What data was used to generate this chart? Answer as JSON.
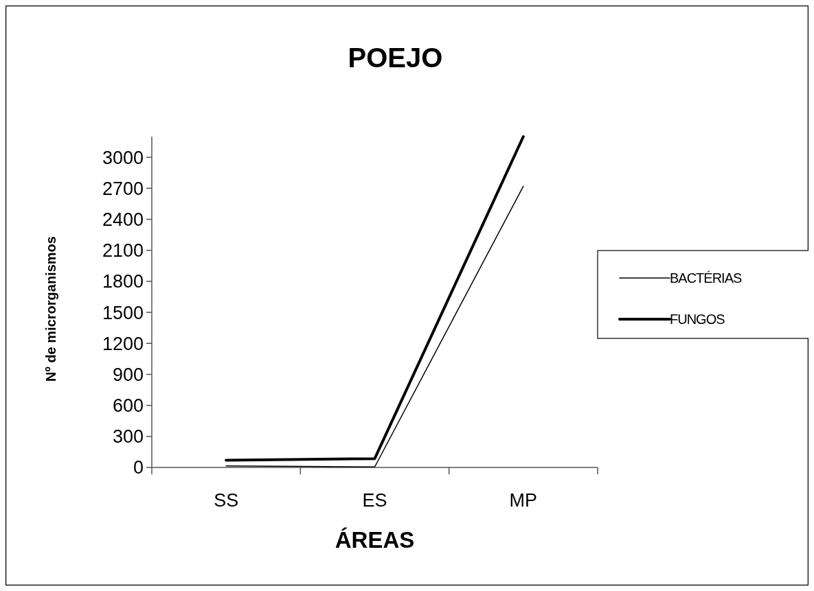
{
  "chart_data": {
    "type": "line",
    "title": "POEJO",
    "xlabel": "ÁREAS",
    "ylabel": "Nº de microrganismos",
    "categories": [
      "SS",
      "ES",
      "MP"
    ],
    "series": [
      {
        "name": "BACTÉRIAS",
        "color": "#000000",
        "values": [
          15,
          5,
          2720
        ]
      },
      {
        "name": "FUNGOS",
        "color": "#000000",
        "values": [
          70,
          85,
          3200
        ]
      }
    ],
    "ylim": [
      0,
      3200
    ],
    "yticks": [
      0,
      300,
      600,
      900,
      1200,
      1500,
      1800,
      2100,
      2400,
      2700,
      3000
    ],
    "grid": false,
    "legend": "right",
    "marker": "none",
    "line_style": "solid"
  }
}
